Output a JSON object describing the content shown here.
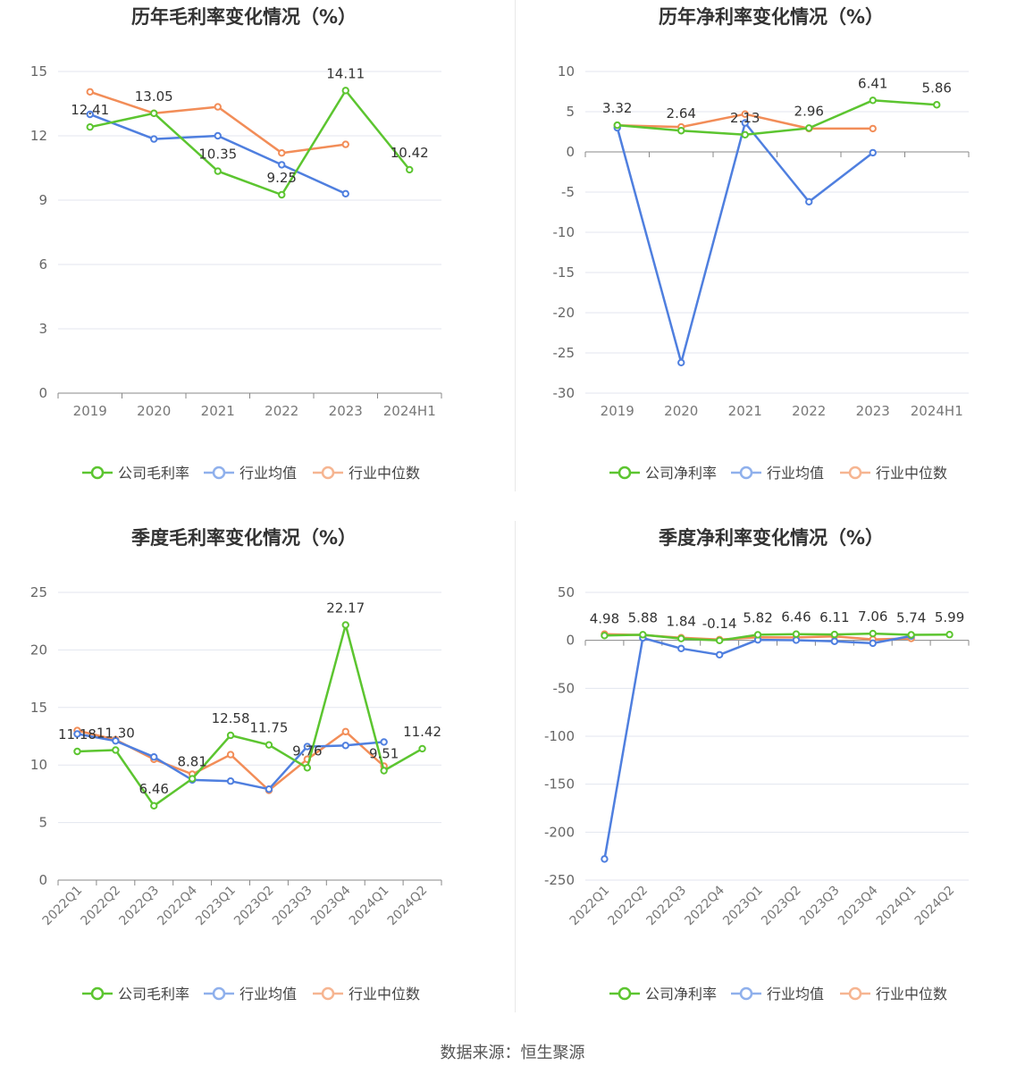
{
  "source_text": "数据来源：恒生聚源",
  "series_colors": {
    "company": "#5cc530",
    "industry_avg": "#4f7fdf",
    "industry_median": "#f28d58"
  },
  "legend_labels": [
    "行业均值",
    "行业中位数"
  ],
  "chart_data": [
    {
      "type": "line",
      "title": "历年毛利率变化情况（%）",
      "categories": [
        "2019",
        "2020",
        "2021",
        "2022",
        "2023",
        "2024H1"
      ],
      "ylim": [
        0,
        15
      ],
      "yticks": [
        0,
        3,
        6,
        9,
        12,
        15
      ],
      "yticks_labels": [
        "0",
        "3",
        "6",
        "9",
        "12",
        "15"
      ],
      "rotate_x": false,
      "series": [
        {
          "name": "公司毛利率",
          "color": "#5cc530",
          "labels": true,
          "values": [
            12.41,
            13.05,
            10.35,
            9.25,
            14.11,
            10.42
          ]
        },
        {
          "name": "行业均值",
          "color": "#4f7fdf",
          "labels": false,
          "values": [
            13.0,
            11.85,
            12.0,
            10.65,
            9.3,
            null
          ]
        },
        {
          "name": "行业中位数",
          "color": "#f28d58",
          "labels": false,
          "values": [
            14.05,
            13.05,
            13.35,
            11.2,
            11.6,
            null
          ]
        }
      ]
    },
    {
      "type": "line",
      "title": "历年净利率变化情况（%）",
      "categories": [
        "2019",
        "2020",
        "2021",
        "2022",
        "2023",
        "2024H1"
      ],
      "ylim": [
        -30,
        10
      ],
      "yticks": [
        -30,
        -25,
        -20,
        -15,
        -10,
        -5,
        0,
        5,
        10
      ],
      "yticks_labels": [
        "-30",
        "-25",
        "-20",
        "-15",
        "-10",
        "-5",
        "0",
        "5",
        "10"
      ],
      "rotate_x": false,
      "series": [
        {
          "name": "公司净利率",
          "color": "#5cc530",
          "labels": true,
          "values": [
            3.32,
            2.64,
            2.13,
            2.96,
            6.41,
            5.86
          ]
        },
        {
          "name": "行业均值",
          "color": "#4f7fdf",
          "labels": false,
          "values": [
            3.0,
            -26.2,
            3.6,
            -6.2,
            -0.1,
            null
          ]
        },
        {
          "name": "行业中位数",
          "color": "#f28d58",
          "labels": false,
          "values": [
            3.3,
            3.1,
            4.7,
            2.9,
            2.9,
            null
          ]
        }
      ]
    },
    {
      "type": "line",
      "title": "季度毛利率变化情况（%）",
      "categories": [
        "2022Q1",
        "2022Q2",
        "2022Q3",
        "2022Q4",
        "2023Q1",
        "2023Q2",
        "2023Q3",
        "2023Q4",
        "2024Q1",
        "2024Q2"
      ],
      "ylim": [
        0,
        25
      ],
      "yticks": [
        0,
        5,
        10,
        15,
        20,
        25
      ],
      "yticks_labels": [
        "0",
        "5",
        "10",
        "15",
        "20",
        "25"
      ],
      "rotate_x": true,
      "series": [
        {
          "name": "公司毛利率",
          "color": "#5cc530",
          "labels": true,
          "values": [
            11.18,
            11.3,
            6.46,
            8.81,
            12.58,
            11.75,
            9.76,
            22.17,
            9.51,
            11.42
          ]
        },
        {
          "name": "行业均值",
          "color": "#4f7fdf",
          "labels": false,
          "values": [
            12.7,
            12.1,
            10.7,
            8.7,
            8.6,
            7.9,
            11.6,
            11.7,
            12.0,
            null
          ]
        },
        {
          "name": "行业中位数",
          "color": "#f28d58",
          "labels": false,
          "values": [
            13.0,
            12.2,
            10.5,
            9.2,
            10.9,
            7.8,
            10.5,
            12.9,
            9.9,
            null
          ]
        }
      ]
    },
    {
      "type": "line",
      "title": "季度净利率变化情况（%）",
      "categories": [
        "2022Q1",
        "2022Q2",
        "2022Q3",
        "2022Q4",
        "2023Q1",
        "2023Q2",
        "2023Q3",
        "2023Q4",
        "2024Q1",
        "2024Q2"
      ],
      "ylim": [
        -250,
        50
      ],
      "yticks": [
        -250,
        -200,
        -150,
        -100,
        -50,
        0,
        50
      ],
      "yticks_labels": [
        "-250",
        "-200",
        "-150",
        "-100",
        "-50",
        "0",
        "50"
      ],
      "rotate_x": true,
      "series": [
        {
          "name": "公司净利率",
          "color": "#5cc530",
          "labels": true,
          "values": [
            4.98,
            5.88,
            1.84,
            -0.14,
            5.82,
            6.46,
            6.11,
            7.06,
            5.74,
            5.99
          ]
        },
        {
          "name": "行业均值",
          "color": "#4f7fdf",
          "labels": false,
          "values": [
            -228,
            2.5,
            -8.5,
            -15,
            0.5,
            0.2,
            -1.0,
            -3.0,
            4.5,
            null
          ]
        },
        {
          "name": "行业中位数",
          "color": "#f28d58",
          "labels": false,
          "values": [
            6.5,
            5.5,
            2.8,
            0.8,
            3.2,
            3.0,
            4.2,
            1.0,
            2.0,
            null
          ]
        }
      ]
    }
  ]
}
